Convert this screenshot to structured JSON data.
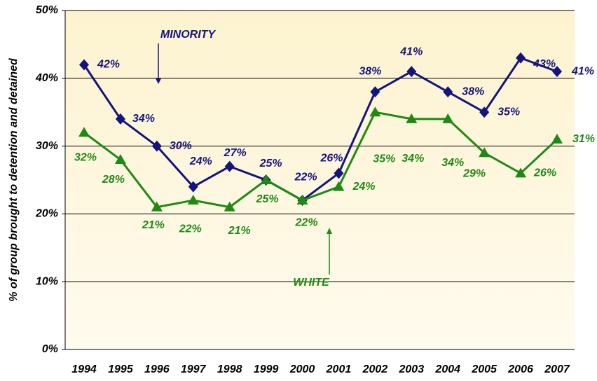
{
  "chart_data": {
    "type": "line",
    "ylabel": "% of group brought to detention and detained",
    "categories": [
      "1994",
      "1995",
      "1996",
      "1997",
      "1998",
      "1999",
      "2000",
      "2001",
      "2002",
      "2003",
      "2004",
      "2005",
      "2006",
      "2007"
    ],
    "series": [
      {
        "name": "MINORITY",
        "color": "#14147e",
        "marker": "diamond",
        "values": [
          42,
          34,
          30,
          24,
          27,
          25,
          22,
          26,
          38,
          41,
          38,
          35,
          43,
          41
        ],
        "value_labels": [
          "42%",
          "34%",
          "30%",
          "24%",
          "27%",
          "25%",
          "22%",
          "26%",
          "38%",
          "41%",
          "38%",
          "35%",
          "43%",
          "41%"
        ]
      },
      {
        "name": "WHITE",
        "color": "#1e8a14",
        "marker": "triangle",
        "values": [
          32,
          28,
          21,
          22,
          21,
          25,
          22,
          24,
          35,
          34,
          34,
          29,
          26,
          31
        ],
        "value_labels": [
          "32%",
          "28%",
          "21%",
          "22%",
          "21%",
          "25%",
          "22%",
          "24%",
          "35%",
          "34%",
          "34%",
          "29%",
          "26%",
          "31%"
        ]
      }
    ],
    "ylim": [
      0,
      50
    ],
    "yticks": [
      {
        "value": 0,
        "label": "0%"
      },
      {
        "value": 10,
        "label": "10%"
      },
      {
        "value": 20,
        "label": "20%"
      },
      {
        "value": 30,
        "label": "30%"
      },
      {
        "value": 40,
        "label": "40%"
      },
      {
        "value": 50,
        "label": "50%"
      }
    ],
    "grid": true
  }
}
